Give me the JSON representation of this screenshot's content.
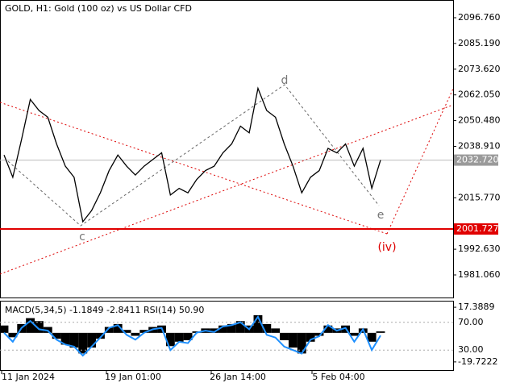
{
  "chart_data": {
    "type": "line",
    "title": "GOLD, H1:  Gold (100 oz) vs US Dollar CFD",
    "values": [
      2035,
      2025,
      2042,
      2060,
      2055,
      2052,
      2040,
      2030,
      2025,
      2005,
      2010,
      2018,
      2028,
      2035,
      2030,
      2026,
      2030,
      2033,
      2036,
      2017,
      2020,
      2018,
      2024,
      2028,
      2030,
      2036,
      2040,
      2048,
      2045,
      2065,
      2055,
      2052,
      2040,
      2030,
      2018,
      2025,
      2028,
      2038,
      2036,
      2040,
      2030,
      2038,
      2020,
      2032.72
    ],
    "color": "#000000",
    "ylim": [
      1970.54,
      2104.74
    ],
    "yticks": [
      {
        "value": 2096.76,
        "label": "2096.760"
      },
      {
        "value": 2085.19,
        "label": "2085.190"
      },
      {
        "value": 2073.62,
        "label": "2073.620"
      },
      {
        "value": 2062.05,
        "label": "2062.050"
      },
      {
        "value": 2050.48,
        "label": "2050.480"
      },
      {
        "value": 2038.91,
        "label": "2038.910"
      },
      {
        "value": 2015.77,
        "label": "2015.770"
      },
      {
        "value": 1992.63,
        "label": "1992.630"
      },
      {
        "value": 1981.06,
        "label": "1981.060"
      }
    ],
    "level": {
      "value": 2001.727,
      "label": "2001.727",
      "color": "#e00000"
    },
    "last": {
      "value": 2032.72,
      "label": "2032.720"
    },
    "annotations": [
      "c",
      "d",
      "e",
      "(iv)"
    ],
    "x_labels": [
      "11 Jan 2024",
      "19 Jan 01:00",
      "26 Jan 14:00",
      "5 Feb 04:00"
    ],
    "indicator": {
      "title": "MACD(5,34,5) -1.1849 -2.8411 RSI(14) 50.90",
      "macd_ylim": [
        -25.81,
        21.27
      ],
      "macd_ticks": [
        17.3889,
        -19.7222
      ],
      "rsi_ylim": [
        0,
        100
      ],
      "rsi_ticks": [
        {
          "value": 70,
          "label": "70.00"
        },
        {
          "value": 30,
          "label": "30.00"
        }
      ],
      "histogram": [
        5,
        -3,
        6,
        10,
        8,
        4,
        -4,
        -8,
        -10,
        -14,
        -10,
        -4,
        4,
        6,
        2,
        -2,
        2,
        4,
        5,
        -9,
        -6,
        -5,
        1,
        3,
        3,
        5,
        6,
        8,
        5,
        12,
        6,
        3,
        -5,
        -10,
        -14,
        -6,
        -2,
        5,
        3,
        5,
        -2,
        3,
        -6,
        1
      ],
      "rsi": [
        55,
        42,
        62,
        72,
        60,
        58,
        45,
        38,
        35,
        22,
        35,
        48,
        62,
        66,
        52,
        45,
        55,
        60,
        62,
        30,
        42,
        40,
        55,
        58,
        56,
        64,
        66,
        70,
        60,
        78,
        52,
        48,
        35,
        30,
        25,
        45,
        50,
        66,
        58,
        62,
        42,
        60,
        30,
        51
      ],
      "rsi_color": "#1e90ff"
    }
  }
}
